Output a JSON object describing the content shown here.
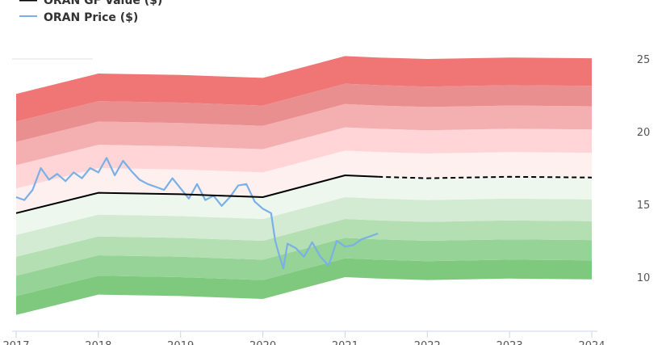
{
  "legend": {
    "gf_label": "ORAN GF Value ($)",
    "price_label": "ORAN Price ($)"
  },
  "chart_data": {
    "type": "area",
    "title": "",
    "xlabel": "",
    "ylabel": "",
    "xlim": [
      2017.0,
      2024.0
    ],
    "ylim": [
      6.5,
      26.5
    ],
    "y_ticks": [
      10,
      15,
      20,
      25
    ],
    "x_ticks": [
      2017,
      2018,
      2019,
      2020,
      2021,
      2022,
      2023,
      2024
    ],
    "x_tick_labels": [
      "2017",
      "2018",
      "2019",
      "2020",
      "2021",
      "2022",
      "2023",
      "2024"
    ],
    "grid": false,
    "legend_position": "top-left",
    "gf_value": {
      "name": "ORAN GF Value ($)",
      "color": "#000000",
      "x": [
        2017.0,
        2018.0,
        2019.0,
        2020.0,
        2021.0,
        2021.4,
        2022.0,
        2023.0,
        2024.0
      ],
      "y": [
        14.4,
        15.8,
        15.7,
        15.5,
        17.0,
        16.9,
        16.8,
        16.9,
        16.85
      ],
      "estimate_from": 2021.4
    },
    "band_offsets": [
      -7.0,
      -5.7,
      -4.3,
      -3.0,
      -1.5,
      1.7,
      3.3,
      4.9,
      6.3,
      8.2
    ],
    "band_colors": [
      "#7fc97f",
      "#96d396",
      "#b4dfb3",
      "#d3ebd2",
      "#eef7ee",
      "#fff0f0",
      "#ffd5d8",
      "#f4b0b0",
      "#e98f8f",
      "#f07575"
    ],
    "price": {
      "name": "ORAN Price ($)",
      "color": "#7ab0e6",
      "x": [
        2017.0,
        2017.1,
        2017.2,
        2017.3,
        2017.4,
        2017.5,
        2017.6,
        2017.7,
        2017.8,
        2017.9,
        2018.0,
        2018.1,
        2018.2,
        2018.3,
        2018.4,
        2018.5,
        2018.6,
        2018.7,
        2018.8,
        2018.9,
        2019.0,
        2019.1,
        2019.2,
        2019.3,
        2019.4,
        2019.5,
        2019.6,
        2019.7,
        2019.8,
        2019.9,
        2020.0,
        2020.1,
        2020.15,
        2020.2,
        2020.25,
        2020.3,
        2020.4,
        2020.5,
        2020.6,
        2020.7,
        2020.8,
        2020.9,
        2021.0,
        2021.1,
        2021.2,
        2021.3,
        2021.4
      ],
      "y": [
        15.5,
        15.3,
        16.0,
        17.5,
        16.7,
        17.1,
        16.6,
        17.2,
        16.8,
        17.5,
        17.2,
        18.2,
        17.0,
        18.0,
        17.3,
        16.7,
        16.4,
        16.2,
        16.0,
        16.8,
        16.1,
        15.4,
        16.4,
        15.3,
        15.6,
        14.9,
        15.5,
        16.3,
        16.4,
        15.2,
        14.7,
        14.4,
        12.5,
        11.5,
        10.6,
        12.3,
        12.0,
        11.4,
        12.4,
        11.4,
        10.8,
        12.5,
        12.1,
        12.2,
        12.6,
        12.8,
        13.0
      ]
    }
  }
}
